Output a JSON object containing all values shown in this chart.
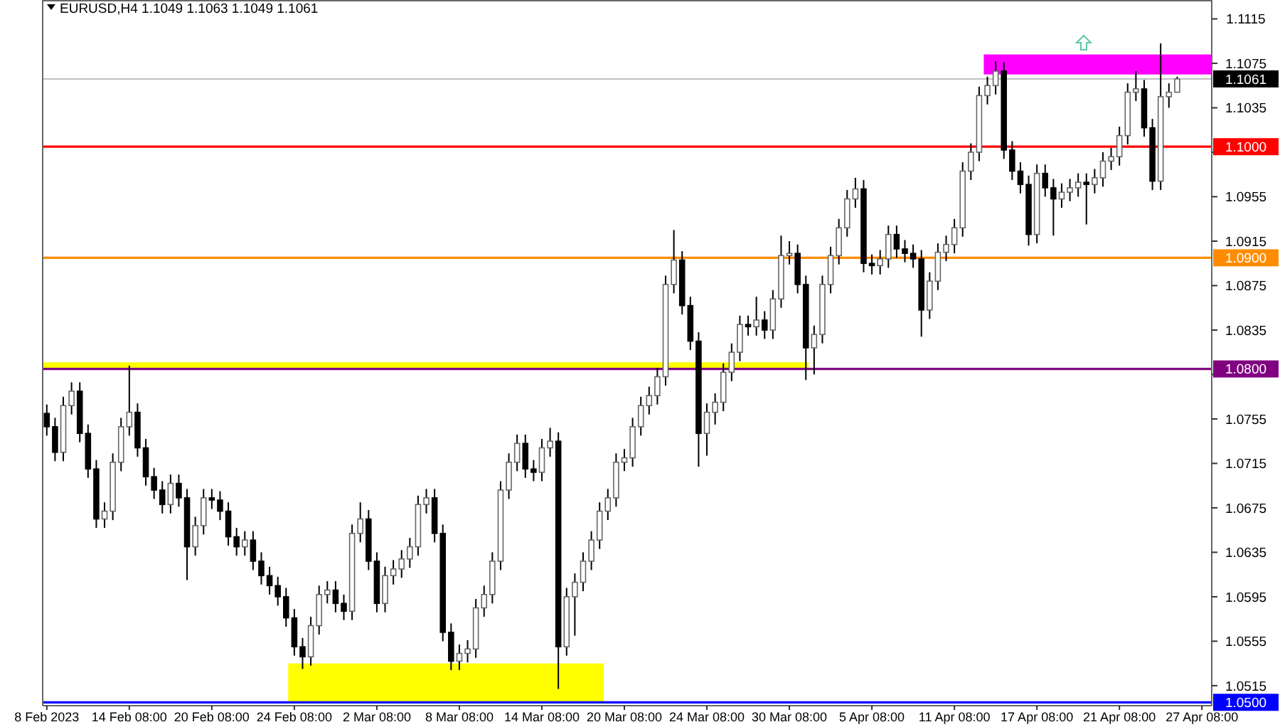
{
  "chart_data": {
    "type": "candlestick",
    "title": "EURUSD,H4  1.1049 1.1063 1.1049 1.1061",
    "categories": [
      "8 Feb 2023",
      null,
      null,
      null,
      null,
      null,
      null,
      null,
      null,
      null,
      "14 Feb 08:00",
      null,
      null,
      null,
      null,
      null,
      null,
      null,
      null,
      null,
      "20 Feb 08:00",
      null,
      null,
      null,
      null,
      null,
      null,
      null,
      null,
      null,
      "24 Feb 08:00",
      null,
      null,
      null,
      null,
      null,
      null,
      null,
      null,
      null,
      "2 Mar 08:00",
      null,
      null,
      null,
      null,
      null,
      null,
      null,
      null,
      null,
      "8 Mar 08:00",
      null,
      null,
      null,
      null,
      null,
      null,
      null,
      null,
      null,
      "14 Mar 08:00",
      null,
      null,
      null,
      null,
      null,
      null,
      null,
      null,
      null,
      "20 Mar 08:00",
      null,
      null,
      null,
      null,
      null,
      null,
      null,
      null,
      null,
      "24 Mar 08:00",
      null,
      null,
      null,
      null,
      null,
      null,
      null,
      null,
      null,
      "30 Mar 08:00",
      null,
      null,
      null,
      null,
      null,
      null,
      null,
      null,
      null,
      "5 Apr 08:00",
      null,
      null,
      null,
      null,
      null,
      null,
      null,
      null,
      null,
      "11 Apr 08:00",
      null,
      null,
      null,
      null,
      null,
      null,
      null,
      null,
      null,
      "17 Apr 08:00",
      null,
      null,
      null,
      null,
      null,
      null,
      null,
      null,
      null,
      "21 Apr 08:00",
      null,
      null,
      null,
      null,
      null,
      null,
      null,
      null,
      null,
      "27 Apr 08:00"
    ],
    "ohlc": [
      [
        1.076,
        1.0768,
        1.074,
        1.0748
      ],
      [
        1.0748,
        1.0756,
        1.0717,
        1.0725
      ],
      [
        1.0725,
        1.0775,
        1.0717,
        1.0767
      ],
      [
        1.0767,
        1.0788,
        1.0759,
        1.078
      ],
      [
        1.078,
        1.0788,
        1.0734,
        1.0742
      ],
      [
        1.0742,
        1.075,
        1.0702,
        1.071
      ],
      [
        1.071,
        1.0718,
        1.0657,
        1.0665
      ],
      [
        1.0665,
        1.068,
        1.0657,
        1.0672
      ],
      [
        1.0672,
        1.0724,
        1.0664,
        1.0716
      ],
      [
        1.0716,
        1.0756,
        1.0708,
        1.0748
      ],
      [
        1.0748,
        1.0803,
        1.074,
        1.0761
      ],
      [
        1.0761,
        1.0769,
        1.0721,
        1.0729
      ],
      [
        1.0729,
        1.0737,
        1.0695,
        1.0703
      ],
      [
        1.0703,
        1.0711,
        1.0683,
        1.0691
      ],
      [
        1.0691,
        1.0699,
        1.067,
        1.0678
      ],
      [
        1.0678,
        1.0705,
        1.067,
        1.0697
      ],
      [
        1.0697,
        1.0705,
        1.0676,
        1.0684
      ],
      [
        1.0684,
        1.0692,
        1.061,
        1.064
      ],
      [
        1.064,
        1.0667,
        1.0632,
        1.0659
      ],
      [
        1.0659,
        1.0692,
        1.0651,
        1.0684
      ],
      [
        1.0684,
        1.0692,
        1.0674,
        1.0682
      ],
      [
        1.0682,
        1.069,
        1.0664,
        1.0672
      ],
      [
        1.0672,
        1.068,
        1.0641,
        1.0649
      ],
      [
        1.0649,
        1.0657,
        1.0632,
        1.064
      ],
      [
        1.064,
        1.0654,
        1.0632,
        1.0646
      ],
      [
        1.0646,
        1.0654,
        1.0619,
        1.0627
      ],
      [
        1.0627,
        1.0635,
        1.0606,
        1.0614
      ],
      [
        1.0614,
        1.0622,
        1.0597,
        1.0605
      ],
      [
        1.0605,
        1.0613,
        1.0587,
        1.0595
      ],
      [
        1.0595,
        1.0603,
        1.0568,
        1.0576
      ],
      [
        1.0576,
        1.0584,
        1.0542,
        1.055
      ],
      [
        1.055,
        1.0558,
        1.053,
        1.0541
      ],
      [
        1.0541,
        1.0577,
        1.0533,
        1.0569
      ],
      [
        1.0569,
        1.0605,
        1.0561,
        1.0597
      ],
      [
        1.0597,
        1.0609,
        1.0589,
        1.0601
      ],
      [
        1.0601,
        1.0609,
        1.0581,
        1.0589
      ],
      [
        1.0589,
        1.0597,
        1.0574,
        1.0582
      ],
      [
        1.0582,
        1.066,
        1.0574,
        1.0652
      ],
      [
        1.0652,
        1.068,
        1.0644,
        1.0665
      ],
      [
        1.0665,
        1.0673,
        1.0619,
        1.0627
      ],
      [
        1.0627,
        1.0635,
        1.0581,
        1.0589
      ],
      [
        1.0589,
        1.0622,
        1.0581,
        1.0614
      ],
      [
        1.0614,
        1.0628,
        1.0606,
        1.062
      ],
      [
        1.062,
        1.0637,
        1.0612,
        1.0629
      ],
      [
        1.0629,
        1.0648,
        1.0621,
        1.064
      ],
      [
        1.064,
        1.0686,
        1.0632,
        1.0678
      ],
      [
        1.0678,
        1.0692,
        1.067,
        1.0684
      ],
      [
        1.0684,
        1.0692,
        1.0644,
        1.0652
      ],
      [
        1.0652,
        1.066,
        1.0555,
        1.0563
      ],
      [
        1.0563,
        1.0571,
        1.0529,
        1.0537
      ],
      [
        1.0537,
        1.0552,
        1.0529,
        1.0544
      ],
      [
        1.0544,
        1.0556,
        1.0536,
        1.0548
      ],
      [
        1.0548,
        1.0593,
        1.054,
        1.0585
      ],
      [
        1.0585,
        1.0605,
        1.0577,
        1.0597
      ],
      [
        1.0597,
        1.0635,
        1.0589,
        1.0627
      ],
      [
        1.0627,
        1.0699,
        1.0619,
        1.0691
      ],
      [
        1.0691,
        1.0724,
        1.0683,
        1.0716
      ],
      [
        1.0716,
        1.0741,
        1.0708,
        1.0733
      ],
      [
        1.0733,
        1.0741,
        1.0702,
        1.071
      ],
      [
        1.071,
        1.0718,
        1.0699,
        1.0707
      ],
      [
        1.0707,
        1.0737,
        1.0699,
        1.0729
      ],
      [
        1.0729,
        1.0747,
        1.0721,
        1.0735
      ],
      [
        1.0735,
        1.0743,
        1.0512,
        1.055
      ],
      [
        1.055,
        1.0603,
        1.0542,
        1.0595
      ],
      [
        1.0595,
        1.0616,
        1.056,
        1.0608
      ],
      [
        1.0608,
        1.0635,
        1.06,
        1.0627
      ],
      [
        1.0627,
        1.0654,
        1.0619,
        1.0646
      ],
      [
        1.0646,
        1.068,
        1.0638,
        1.0672
      ],
      [
        1.0672,
        1.0692,
        1.0664,
        1.0684
      ],
      [
        1.0684,
        1.0724,
        1.0676,
        1.0716
      ],
      [
        1.0716,
        1.0728,
        1.0708,
        1.072
      ],
      [
        1.072,
        1.0756,
        1.0712,
        1.0748
      ],
      [
        1.0748,
        1.0775,
        1.074,
        1.0767
      ],
      [
        1.0767,
        1.0784,
        1.0759,
        1.0776
      ],
      [
        1.0776,
        1.0801,
        1.0768,
        1.0793
      ],
      [
        1.0793,
        1.0884,
        1.0785,
        1.0876
      ],
      [
        1.0876,
        1.0925,
        1.0868,
        1.0898
      ],
      [
        1.0898,
        1.0906,
        1.0849,
        1.0857
      ],
      [
        1.0857,
        1.0865,
        1.0817,
        1.0825
      ],
      [
        1.0825,
        1.0833,
        1.0712,
        1.0742
      ],
      [
        1.0742,
        1.0769,
        1.0722,
        1.0761
      ],
      [
        1.0761,
        1.0778,
        1.075,
        1.077
      ],
      [
        1.077,
        1.0805,
        1.0762,
        1.0797
      ],
      [
        1.0797,
        1.0823,
        1.0789,
        1.0815
      ],
      [
        1.0815,
        1.0848,
        1.0807,
        1.084
      ],
      [
        1.084,
        1.0848,
        1.083,
        1.0838
      ],
      [
        1.0838,
        1.0865,
        1.083,
        1.0844
      ],
      [
        1.0844,
        1.0852,
        1.0827,
        1.0835
      ],
      [
        1.0835,
        1.0871,
        1.0827,
        1.0863
      ],
      [
        1.0863,
        1.092,
        1.0855,
        1.0902
      ],
      [
        1.0902,
        1.0915,
        1.0894,
        1.0904
      ],
      [
        1.0904,
        1.0912,
        1.0868,
        1.0876
      ],
      [
        1.0876,
        1.0884,
        1.079,
        1.0819
      ],
      [
        1.0819,
        1.0839,
        1.0795,
        1.0831
      ],
      [
        1.0831,
        1.0884,
        1.0823,
        1.0876
      ],
      [
        1.0876,
        1.091,
        1.0868,
        1.0902
      ],
      [
        1.0902,
        1.0935,
        1.0894,
        1.0927
      ],
      [
        1.0927,
        1.0961,
        1.0919,
        1.0953
      ],
      [
        1.0953,
        1.0972,
        1.0945,
        1.0962
      ],
      [
        1.0962,
        1.097,
        1.0887,
        1.0895
      ],
      [
        1.0895,
        1.0903,
        1.0885,
        1.0893
      ],
      [
        1.0893,
        1.0907,
        1.0885,
        1.0899
      ],
      [
        1.0899,
        1.0929,
        1.0891,
        1.0921
      ],
      [
        1.0921,
        1.0929,
        1.09,
        1.0908
      ],
      [
        1.0908,
        1.0916,
        1.0896,
        1.0904
      ],
      [
        1.0904,
        1.0912,
        1.0891,
        1.0899
      ],
      [
        1.0899,
        1.0907,
        1.0829,
        1.0853
      ],
      [
        1.0853,
        1.0887,
        1.0845,
        1.0879
      ],
      [
        1.0879,
        1.0913,
        1.0871,
        1.0905
      ],
      [
        1.0905,
        1.092,
        1.0897,
        1.0912
      ],
      [
        1.0912,
        1.0935,
        1.0904,
        1.0927
      ],
      [
        1.0927,
        1.0986,
        1.0919,
        1.0978
      ],
      [
        1.0978,
        1.1003,
        1.097,
        1.0995
      ],
      [
        1.0995,
        1.1054,
        1.0987,
        1.1046
      ],
      [
        1.1046,
        1.1063,
        1.1038,
        1.1055
      ],
      [
        1.1055,
        1.1077,
        1.1047,
        1.1068
      ],
      [
        1.1068,
        1.1076,
        1.0989,
        1.0997
      ],
      [
        1.0997,
        1.1005,
        1.097,
        1.0978
      ],
      [
        1.0978,
        1.0986,
        1.0958,
        1.0966
      ],
      [
        1.0966,
        1.0974,
        1.0911,
        1.0921
      ],
      [
        1.0921,
        1.0984,
        1.0913,
        1.0976
      ],
      [
        1.0976,
        1.0984,
        1.0955,
        1.0963
      ],
      [
        1.0963,
        1.0971,
        1.092,
        1.0953
      ],
      [
        1.0953,
        1.0967,
        1.0945,
        1.0959
      ],
      [
        1.0959,
        1.0971,
        1.0951,
        1.0963
      ],
      [
        1.0963,
        1.0976,
        1.0955,
        1.0968
      ],
      [
        1.0968,
        1.0976,
        1.093,
        1.0966
      ],
      [
        1.0966,
        1.098,
        1.0958,
        1.0972
      ],
      [
        1.0972,
        1.0995,
        1.0964,
        1.0987
      ],
      [
        1.0987,
        1.0999,
        1.0979,
        1.0991
      ],
      [
        1.0991,
        1.1018,
        1.0983,
        1.101
      ],
      [
        1.101,
        1.1057,
        1.1002,
        1.1049
      ],
      [
        1.1049,
        1.1068,
        1.1041,
        1.1052
      ],
      [
        1.1052,
        1.106,
        1.1009,
        1.1017
      ],
      [
        1.1017,
        1.1025,
        1.0961,
        1.0969
      ],
      [
        1.0969,
        1.1093,
        1.0961,
        1.1045
      ],
      [
        1.1045,
        1.1057,
        1.1035,
        1.1049
      ],
      [
        1.1049,
        1.1063,
        1.1049,
        1.1061
      ],
      null,
      null,
      null
    ],
    "ylim": [
      1.0497,
      1.1132
    ],
    "yticks": [
      1.0515,
      1.0555,
      1.0595,
      1.0635,
      1.0675,
      1.0715,
      1.0755,
      {
        "value": 1.0795,
        "label": null
      },
      1.0835,
      1.0875,
      1.0915,
      1.0955,
      {
        "value": 1.0995,
        "label": null
      },
      1.1035,
      1.1075,
      1.1115
    ],
    "ref_lines": [
      {
        "axis": "y",
        "value": 1.1061,
        "label": "1.1061",
        "color": "#c0c0c0"
      },
      {
        "axis": "y",
        "value": 1.1,
        "label": "1.1000",
        "color": "#ff0000"
      },
      {
        "axis": "y",
        "value": 1.09,
        "label": "1.0900",
        "color": "#ff8c00"
      },
      {
        "axis": "y",
        "value": 1.08,
        "label": "1.0800",
        "color": "#800080"
      },
      {
        "axis": "y",
        "value": 1.05,
        "label": "1.0500",
        "color": "#0000ff"
      }
    ],
    "bands": [
      {
        "axis": "y",
        "from": 1.08,
        "to": 1.0806,
        "color": "#ffff00"
      },
      {
        "axis": "y",
        "from": 1.05,
        "to": 1.0535,
        "color": "#ffff00"
      },
      {
        "axis": "y",
        "from": 1.1065,
        "to": 1.1083,
        "color": "#ff00ff"
      }
    ],
    "grid": false
  }
}
